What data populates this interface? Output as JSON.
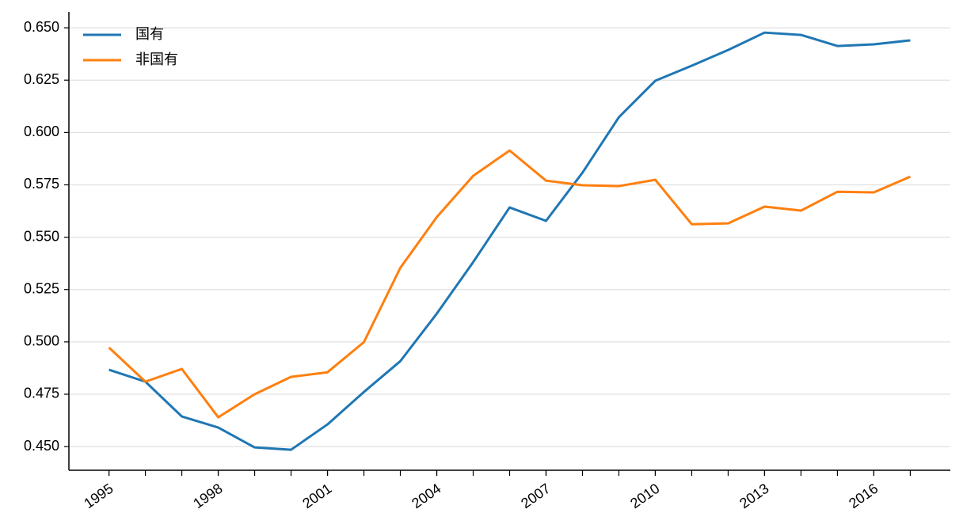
{
  "chart_data": {
    "type": "line",
    "x": [
      1995,
      1996,
      1997,
      1998,
      1999,
      2000,
      2001,
      2002,
      2003,
      2004,
      2005,
      2006,
      2007,
      2008,
      2009,
      2010,
      2011,
      2012,
      2013,
      2014,
      2015,
      2016,
      2017
    ],
    "series": [
      {
        "name": "国有",
        "color": "#1f77b4",
        "values": [
          0.4867,
          0.481,
          0.4644,
          0.4591,
          0.4496,
          0.4485,
          0.4606,
          0.4761,
          0.4908,
          0.5135,
          0.5381,
          0.5642,
          0.5578,
          0.5808,
          0.6073,
          0.6247,
          0.6319,
          0.6394,
          0.6477,
          0.6466,
          0.6413,
          0.6421,
          0.644
        ]
      },
      {
        "name": "非国有",
        "color": "#ff7f0e",
        "values": [
          0.4973,
          0.481,
          0.4871,
          0.464,
          0.475,
          0.4833,
          0.4855,
          0.4999,
          0.5354,
          0.5596,
          0.5793,
          0.5914,
          0.577,
          0.5748,
          0.5744,
          0.5774,
          0.5562,
          0.5566,
          0.5646,
          0.5627,
          0.5717,
          0.5714,
          0.5789
        ]
      }
    ],
    "xlim": [
      1993.9,
      2018.1
    ],
    "xticks": [
      1995,
      1998,
      2001,
      2004,
      2007,
      2010,
      2013,
      2016
    ],
    "ylim": [
      0.4387,
      0.6576
    ],
    "yticks": [
      {
        "value": 0.45,
        "label": "0.450"
      },
      {
        "value": 0.475,
        "label": "0.475"
      },
      {
        "value": 0.5,
        "label": "0.500"
      },
      {
        "value": 0.525,
        "label": "0.525"
      },
      {
        "value": 0.55,
        "label": "0.550"
      },
      {
        "value": 0.575,
        "label": "0.575"
      },
      {
        "value": 0.6,
        "label": "0.600"
      },
      {
        "value": 0.625,
        "label": "0.625"
      },
      {
        "value": 0.65,
        "label": "0.650"
      }
    ],
    "grid": "y",
    "legend": "upper-left"
  }
}
